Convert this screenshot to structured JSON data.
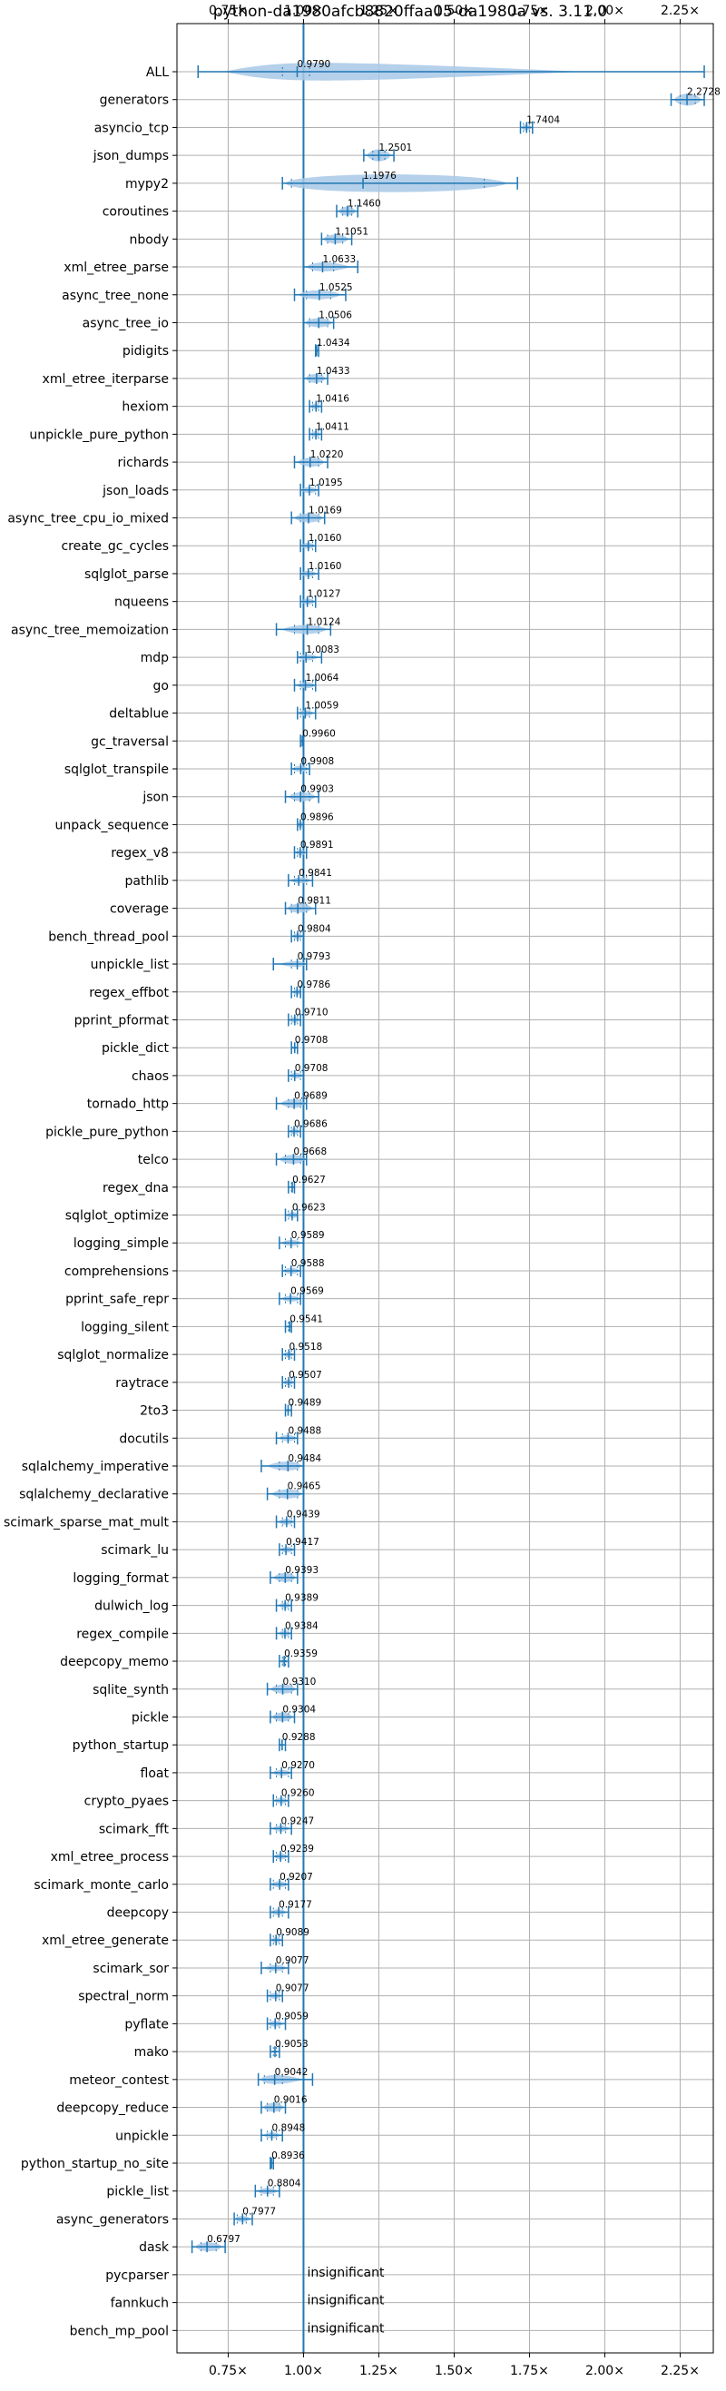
{
  "chart_data": {
    "type": "violin",
    "title": "python-da1980afcb8820ffaa05-da1980a vs. 3.11.0",
    "xlim": [
      0.58,
      2.36
    ],
    "x_ticks": [
      0.75,
      1.0,
      1.25,
      1.5,
      1.75,
      2.0,
      2.25
    ],
    "x_tick_labels": [
      "0.75×",
      "1.00×",
      "1.25×",
      "1.50×",
      "1.75×",
      "2.00×",
      "2.25×"
    ],
    "reference_line": 1.0,
    "grid": true,
    "accent_color": "#1f77b4",
    "violin_color": "#a8c8e6",
    "insignificant_text": "insignificant",
    "benchmarks": [
      {
        "name": "ALL",
        "value": 0.979,
        "label": "0.9790",
        "min": 0.65,
        "max": 2.33,
        "q1": 0.93,
        "q3": 1.02,
        "width": 0.06
      },
      {
        "name": "generators",
        "value": 2.2728,
        "label": "2.2728",
        "min": 2.22,
        "max": 2.33,
        "q1": 2.25,
        "q3": 2.3,
        "width": 0.04
      },
      {
        "name": "asyncio_tcp",
        "value": 1.7404,
        "label": "1.7404",
        "min": 1.72,
        "max": 1.76,
        "q1": 1.73,
        "q3": 1.75,
        "width": 0.02
      },
      {
        "name": "json_dumps",
        "value": 1.2501,
        "label": "1.2501",
        "min": 1.2,
        "max": 1.3,
        "q1": 1.23,
        "q3": 1.27,
        "width": 0.04
      },
      {
        "name": "mypy2",
        "value": 1.1976,
        "label": "1.1976",
        "min": 0.93,
        "max": 1.71,
        "q1": 0.96,
        "q3": 1.6,
        "width": 0.07
      },
      {
        "name": "coroutines",
        "value": 1.146,
        "label": "1.1460",
        "min": 1.11,
        "max": 1.18,
        "q1": 1.13,
        "q3": 1.16,
        "width": 0.03
      },
      {
        "name": "nbody",
        "value": 1.1051,
        "label": "1.1051",
        "min": 1.06,
        "max": 1.16,
        "q1": 1.08,
        "q3": 1.13,
        "width": 0.03
      },
      {
        "name": "xml_etree_parse",
        "value": 1.0633,
        "label": "1.0633",
        "min": 1.0,
        "max": 1.18,
        "q1": 1.03,
        "q3": 1.1,
        "width": 0.03
      },
      {
        "name": "async_tree_none",
        "value": 1.0525,
        "label": "1.0525",
        "min": 0.97,
        "max": 1.14,
        "q1": 1.01,
        "q3": 1.09,
        "width": 0.03
      },
      {
        "name": "async_tree_io",
        "value": 1.0506,
        "label": "1.0506",
        "min": 1.0,
        "max": 1.1,
        "q1": 1.02,
        "q3": 1.08,
        "width": 0.03
      },
      {
        "name": "pidigits",
        "value": 1.0434,
        "label": "1.0434",
        "min": 1.04,
        "max": 1.05,
        "q1": 1.04,
        "q3": 1.05,
        "width": 0.01
      },
      {
        "name": "xml_etree_iterparse",
        "value": 1.0433,
        "label": "1.0433",
        "min": 1.0,
        "max": 1.08,
        "q1": 1.02,
        "q3": 1.06,
        "width": 0.03
      },
      {
        "name": "hexiom",
        "value": 1.0416,
        "label": "1.0416",
        "min": 1.02,
        "max": 1.06,
        "q1": 1.03,
        "q3": 1.05,
        "width": 0.02
      },
      {
        "name": "unpickle_pure_python",
        "value": 1.0411,
        "label": "1.0411",
        "min": 1.02,
        "max": 1.06,
        "q1": 1.03,
        "q3": 1.05,
        "width": 0.02
      },
      {
        "name": "richards",
        "value": 1.022,
        "label": "1.0220",
        "min": 0.97,
        "max": 1.08,
        "q1": 1.0,
        "q3": 1.05,
        "width": 0.03
      },
      {
        "name": "json_loads",
        "value": 1.0195,
        "label": "1.0195",
        "min": 0.99,
        "max": 1.05,
        "q1": 1.0,
        "q3": 1.04,
        "width": 0.02
      },
      {
        "name": "async_tree_cpu_io_mixed",
        "value": 1.0169,
        "label": "1.0169",
        "min": 0.96,
        "max": 1.07,
        "q1": 0.99,
        "q3": 1.05,
        "width": 0.03
      },
      {
        "name": "create_gc_cycles",
        "value": 1.016,
        "label": "1.0160",
        "min": 0.99,
        "max": 1.04,
        "q1": 1.0,
        "q3": 1.03,
        "width": 0.02
      },
      {
        "name": "sqlglot_parse",
        "value": 1.016,
        "label": "1.0160",
        "min": 0.99,
        "max": 1.05,
        "q1": 1.0,
        "q3": 1.03,
        "width": 0.02
      },
      {
        "name": "nqueens",
        "value": 1.0127,
        "label": "1.0127",
        "min": 0.99,
        "max": 1.04,
        "q1": 1.0,
        "q3": 1.03,
        "width": 0.02
      },
      {
        "name": "async_tree_memoization",
        "value": 1.0124,
        "label": "1.0124",
        "min": 0.91,
        "max": 1.09,
        "q1": 0.97,
        "q3": 1.05,
        "width": 0.03
      },
      {
        "name": "mdp",
        "value": 1.0083,
        "label": "1.0083",
        "min": 0.98,
        "max": 1.06,
        "q1": 0.99,
        "q3": 1.03,
        "width": 0.02
      },
      {
        "name": "go",
        "value": 1.0064,
        "label": "1.0064",
        "min": 0.97,
        "max": 1.04,
        "q1": 0.99,
        "q3": 1.03,
        "width": 0.02
      },
      {
        "name": "deltablue",
        "value": 1.0059,
        "label": "1.0059",
        "min": 0.98,
        "max": 1.04,
        "q1": 0.99,
        "q3": 1.02,
        "width": 0.02
      },
      {
        "name": "gc_traversal",
        "value": 0.996,
        "label": "0.9960",
        "min": 0.99,
        "max": 1.0,
        "q1": 0.99,
        "q3": 1.0,
        "width": 0.01
      },
      {
        "name": "sqlglot_transpile",
        "value": 0.9908,
        "label": "0.9908",
        "min": 0.96,
        "max": 1.02,
        "q1": 0.97,
        "q3": 1.01,
        "width": 0.02
      },
      {
        "name": "json",
        "value": 0.9903,
        "label": "0.9903",
        "min": 0.94,
        "max": 1.05,
        "q1": 0.97,
        "q3": 1.02,
        "width": 0.03
      },
      {
        "name": "unpack_sequence",
        "value": 0.9896,
        "label": "0.9896",
        "min": 0.98,
        "max": 1.0,
        "q1": 0.98,
        "q3": 1.0,
        "width": 0.02
      },
      {
        "name": "regex_v8",
        "value": 0.9891,
        "label": "0.9891",
        "min": 0.97,
        "max": 1.01,
        "q1": 0.98,
        "q3": 1.0,
        "width": 0.02
      },
      {
        "name": "pathlib",
        "value": 0.9841,
        "label": "0.9841",
        "min": 0.95,
        "max": 1.03,
        "q1": 0.97,
        "q3": 1.01,
        "width": 0.02
      },
      {
        "name": "coverage",
        "value": 0.9811,
        "label": "0.9811",
        "min": 0.94,
        "max": 1.04,
        "q1": 0.96,
        "q3": 1.01,
        "width": 0.03
      },
      {
        "name": "bench_thread_pool",
        "value": 0.9804,
        "label": "0.9804",
        "min": 0.96,
        "max": 1.0,
        "q1": 0.97,
        "q3": 0.99,
        "width": 0.02
      },
      {
        "name": "unpickle_list",
        "value": 0.9793,
        "label": "0.9793",
        "min": 0.9,
        "max": 1.01,
        "q1": 0.96,
        "q3": 1.0,
        "width": 0.02
      },
      {
        "name": "regex_effbot",
        "value": 0.9786,
        "label": "0.9786",
        "min": 0.96,
        "max": 0.99,
        "q1": 0.97,
        "q3": 0.99,
        "width": 0.02
      },
      {
        "name": "pprint_pformat",
        "value": 0.971,
        "label": "0.9710",
        "min": 0.95,
        "max": 0.99,
        "q1": 0.96,
        "q3": 0.98,
        "width": 0.02
      },
      {
        "name": "pickle_dict",
        "value": 0.9708,
        "label": "0.9708",
        "min": 0.96,
        "max": 0.98,
        "q1": 0.96,
        "q3": 0.98,
        "width": 0.01
      },
      {
        "name": "chaos",
        "value": 0.9708,
        "label": "0.9708",
        "min": 0.95,
        "max": 1.0,
        "q1": 0.96,
        "q3": 0.99,
        "width": 0.02
      },
      {
        "name": "tornado_http",
        "value": 0.9689,
        "label": "0.9689",
        "min": 0.91,
        "max": 1.01,
        "q1": 0.95,
        "q3": 0.99,
        "width": 0.03
      },
      {
        "name": "pickle_pure_python",
        "value": 0.9686,
        "label": "0.9686",
        "min": 0.95,
        "max": 0.99,
        "q1": 0.96,
        "q3": 0.98,
        "width": 0.02
      },
      {
        "name": "telco",
        "value": 0.9668,
        "label": "0.9668",
        "min": 0.91,
        "max": 1.01,
        "q1": 0.94,
        "q3": 0.99,
        "width": 0.03
      },
      {
        "name": "regex_dna",
        "value": 0.9627,
        "label": "0.9627",
        "min": 0.95,
        "max": 0.97,
        "q1": 0.96,
        "q3": 0.97,
        "width": 0.01
      },
      {
        "name": "sqlglot_optimize",
        "value": 0.9623,
        "label": "0.9623",
        "min": 0.94,
        "max": 0.98,
        "q1": 0.95,
        "q3": 0.98,
        "width": 0.02
      },
      {
        "name": "logging_simple",
        "value": 0.9589,
        "label": "0.9589",
        "min": 0.92,
        "max": 1.0,
        "q1": 0.94,
        "q3": 0.98,
        "width": 0.02
      },
      {
        "name": "comprehensions",
        "value": 0.9588,
        "label": "0.9588",
        "min": 0.93,
        "max": 0.99,
        "q1": 0.94,
        "q3": 0.98,
        "width": 0.02
      },
      {
        "name": "pprint_safe_repr",
        "value": 0.9569,
        "label": "0.9569",
        "min": 0.92,
        "max": 0.99,
        "q1": 0.94,
        "q3": 0.98,
        "width": 0.02
      },
      {
        "name": "logging_silent",
        "value": 0.9541,
        "label": "0.9541",
        "min": 0.94,
        "max": 0.96,
        "q1": 0.95,
        "q3": 0.96,
        "width": 0.01
      },
      {
        "name": "sqlglot_normalize",
        "value": 0.9518,
        "label": "0.9518",
        "min": 0.93,
        "max": 0.97,
        "q1": 0.94,
        "q3": 0.96,
        "width": 0.02
      },
      {
        "name": "raytrace",
        "value": 0.9507,
        "label": "0.9507",
        "min": 0.93,
        "max": 0.97,
        "q1": 0.94,
        "q3": 0.96,
        "width": 0.02
      },
      {
        "name": "2to3",
        "value": 0.9489,
        "label": "0.9489",
        "min": 0.94,
        "max": 0.96,
        "q1": 0.94,
        "q3": 0.96,
        "width": 0.01
      },
      {
        "name": "docutils",
        "value": 0.9488,
        "label": "0.9488",
        "min": 0.91,
        "max": 0.98,
        "q1": 0.93,
        "q3": 0.97,
        "width": 0.02
      },
      {
        "name": "sqlalchemy_imperative",
        "value": 0.9484,
        "label": "0.9484",
        "min": 0.86,
        "max": 1.0,
        "q1": 0.92,
        "q3": 0.98,
        "width": 0.03
      },
      {
        "name": "sqlalchemy_declarative",
        "value": 0.9465,
        "label": "0.9465",
        "min": 0.88,
        "max": 1.0,
        "q1": 0.92,
        "q3": 0.98,
        "width": 0.03
      },
      {
        "name": "scimark_sparse_mat_mult",
        "value": 0.9439,
        "label": "0.9439",
        "min": 0.91,
        "max": 0.97,
        "q1": 0.93,
        "q3": 0.96,
        "width": 0.02
      },
      {
        "name": "scimark_lu",
        "value": 0.9417,
        "label": "0.9417",
        "min": 0.92,
        "max": 0.97,
        "q1": 0.93,
        "q3": 0.96,
        "width": 0.02
      },
      {
        "name": "logging_format",
        "value": 0.9393,
        "label": "0.9393",
        "min": 0.89,
        "max": 0.98,
        "q1": 0.92,
        "q3": 0.96,
        "width": 0.03
      },
      {
        "name": "dulwich_log",
        "value": 0.9389,
        "label": "0.9389",
        "min": 0.91,
        "max": 0.96,
        "q1": 0.93,
        "q3": 0.95,
        "width": 0.02
      },
      {
        "name": "regex_compile",
        "value": 0.9384,
        "label": "0.9384",
        "min": 0.91,
        "max": 0.96,
        "q1": 0.93,
        "q3": 0.95,
        "width": 0.02
      },
      {
        "name": "deepcopy_memo",
        "value": 0.9359,
        "label": "0.9359",
        "min": 0.92,
        "max": 0.95,
        "q1": 0.93,
        "q3": 0.94,
        "width": 0.02
      },
      {
        "name": "sqlite_synth",
        "value": 0.931,
        "label": "0.9310",
        "min": 0.88,
        "max": 0.98,
        "q1": 0.91,
        "q3": 0.96,
        "width": 0.03
      },
      {
        "name": "pickle",
        "value": 0.9304,
        "label": "0.9304",
        "min": 0.89,
        "max": 0.97,
        "q1": 0.91,
        "q3": 0.95,
        "width": 0.03
      },
      {
        "name": "python_startup",
        "value": 0.9288,
        "label": "0.9288",
        "min": 0.92,
        "max": 0.94,
        "q1": 0.92,
        "q3": 0.93,
        "width": 0.005
      },
      {
        "name": "float",
        "value": 0.927,
        "label": "0.9270",
        "min": 0.89,
        "max": 0.96,
        "q1": 0.91,
        "q3": 0.95,
        "width": 0.02
      },
      {
        "name": "crypto_pyaes",
        "value": 0.926,
        "label": "0.9260",
        "min": 0.9,
        "max": 0.95,
        "q1": 0.91,
        "q3": 0.94,
        "width": 0.02
      },
      {
        "name": "scimark_fft",
        "value": 0.9247,
        "label": "0.9247",
        "min": 0.89,
        "max": 0.96,
        "q1": 0.91,
        "q3": 0.94,
        "width": 0.02
      },
      {
        "name": "xml_etree_process",
        "value": 0.9239,
        "label": "0.9239",
        "min": 0.9,
        "max": 0.95,
        "q1": 0.91,
        "q3": 0.94,
        "width": 0.02
      },
      {
        "name": "scimark_monte_carlo",
        "value": 0.9207,
        "label": "0.9207",
        "min": 0.89,
        "max": 0.95,
        "q1": 0.9,
        "q3": 0.94,
        "width": 0.02
      },
      {
        "name": "deepcopy",
        "value": 0.9177,
        "label": "0.9177",
        "min": 0.89,
        "max": 0.95,
        "q1": 0.9,
        "q3": 0.93,
        "width": 0.02
      },
      {
        "name": "xml_etree_generate",
        "value": 0.9089,
        "label": "0.9089",
        "min": 0.89,
        "max": 0.93,
        "q1": 0.9,
        "q3": 0.92,
        "width": 0.02
      },
      {
        "name": "scimark_sor",
        "value": 0.9077,
        "label": "0.9077",
        "min": 0.86,
        "max": 0.95,
        "q1": 0.89,
        "q3": 0.93,
        "width": 0.02
      },
      {
        "name": "spectral_norm",
        "value": 0.9077,
        "label": "0.9077",
        "min": 0.88,
        "max": 0.93,
        "q1": 0.89,
        "q3": 0.92,
        "width": 0.02
      },
      {
        "name": "pyflate",
        "value": 0.9059,
        "label": "0.9059",
        "min": 0.88,
        "max": 0.94,
        "q1": 0.89,
        "q3": 0.92,
        "width": 0.02
      },
      {
        "name": "mako",
        "value": 0.9053,
        "label": "0.9053",
        "min": 0.89,
        "max": 0.92,
        "q1": 0.9,
        "q3": 0.91,
        "width": 0.01
      },
      {
        "name": "meteor_contest",
        "value": 0.9042,
        "label": "0.9042",
        "min": 0.85,
        "max": 1.03,
        "q1": 0.87,
        "q3": 0.93,
        "width": 0.03
      },
      {
        "name": "deepcopy_reduce",
        "value": 0.9016,
        "label": "0.9016",
        "min": 0.86,
        "max": 0.94,
        "q1": 0.88,
        "q3": 0.92,
        "width": 0.03
      },
      {
        "name": "unpickle",
        "value": 0.8948,
        "label": "0.8948",
        "min": 0.86,
        "max": 0.93,
        "q1": 0.88,
        "q3": 0.91,
        "width": 0.02
      },
      {
        "name": "python_startup_no_site",
        "value": 0.8936,
        "label": "0.8936",
        "min": 0.89,
        "max": 0.9,
        "q1": 0.89,
        "q3": 0.9,
        "width": 0.005
      },
      {
        "name": "pickle_list",
        "value": 0.8804,
        "label": "0.8804",
        "min": 0.84,
        "max": 0.92,
        "q1": 0.86,
        "q3": 0.9,
        "width": 0.02
      },
      {
        "name": "async_generators",
        "value": 0.7977,
        "label": "0.7977",
        "min": 0.77,
        "max": 0.83,
        "q1": 0.78,
        "q3": 0.81,
        "width": 0.02
      },
      {
        "name": "dask",
        "value": 0.6797,
        "label": "0.6797",
        "min": 0.63,
        "max": 0.74,
        "q1": 0.66,
        "q3": 0.71,
        "width": 0.03
      },
      {
        "name": "pycparser",
        "value": null,
        "label": "",
        "insignificant": true
      },
      {
        "name": "fannkuch",
        "value": null,
        "label": "",
        "insignificant": true
      },
      {
        "name": "bench_mp_pool",
        "value": null,
        "label": "",
        "insignificant": true
      }
    ]
  }
}
